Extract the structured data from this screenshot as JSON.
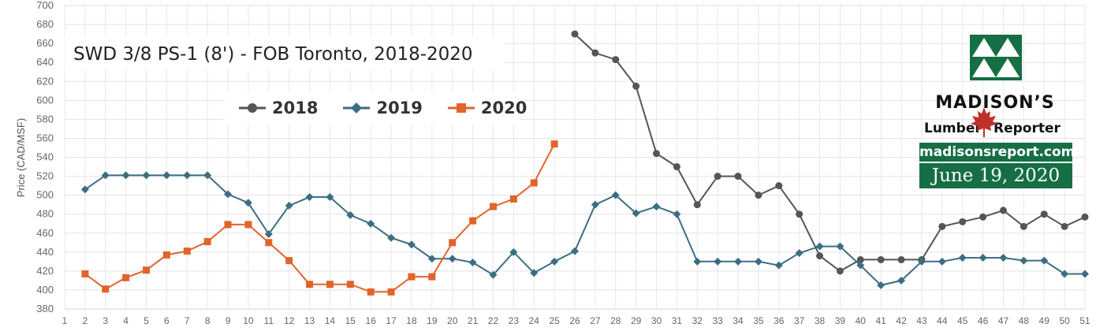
{
  "chart_data": {
    "type": "line",
    "title": "SWD 3/8 PS-1 (8') - FOB Toronto, 2018-2020",
    "ylabel": "Price (CAD/MSF)",
    "xlabel": "",
    "ylim": [
      380,
      700
    ],
    "yticks": [
      380,
      400,
      420,
      440,
      460,
      480,
      500,
      520,
      540,
      560,
      580,
      600,
      620,
      640,
      660,
      680,
      700
    ],
    "x": [
      1,
      2,
      3,
      4,
      5,
      6,
      7,
      8,
      9,
      10,
      11,
      12,
      13,
      14,
      15,
      16,
      17,
      18,
      19,
      20,
      21,
      22,
      23,
      24,
      25,
      26,
      27,
      28,
      29,
      30,
      31,
      32,
      33,
      34,
      35,
      36,
      37,
      38,
      39,
      40,
      41,
      42,
      43,
      44,
      45,
      46,
      47,
      48,
      49,
      50,
      51
    ],
    "grid": true,
    "legend_position": "top-left",
    "series": [
      {
        "name": "2018",
        "color": "#555555",
        "marker": "circle",
        "points": [
          [
            26,
            670
          ],
          [
            27,
            650
          ],
          [
            28,
            643
          ],
          [
            29,
            615
          ],
          [
            30,
            544
          ],
          [
            31,
            530
          ],
          [
            32,
            490
          ],
          [
            33,
            520
          ],
          [
            34,
            520
          ],
          [
            35,
            500
          ],
          [
            36,
            510
          ],
          [
            37,
            480
          ],
          [
            38,
            436
          ],
          [
            39,
            420
          ],
          [
            40,
            432
          ],
          [
            41,
            432
          ],
          [
            42,
            432
          ],
          [
            43,
            432
          ],
          [
            44,
            467
          ],
          [
            45,
            472
          ],
          [
            46,
            477
          ],
          [
            47,
            484
          ],
          [
            48,
            467
          ],
          [
            49,
            480
          ],
          [
            50,
            467
          ],
          [
            51,
            477
          ]
        ]
      },
      {
        "name": "2019",
        "color": "#3c6e82",
        "marker": "diamond",
        "points": [
          [
            2,
            506
          ],
          [
            3,
            521
          ],
          [
            4,
            521
          ],
          [
            5,
            521
          ],
          [
            6,
            521
          ],
          [
            7,
            521
          ],
          [
            8,
            521
          ],
          [
            9,
            501
          ],
          [
            10,
            492
          ],
          [
            11,
            459
          ],
          [
            12,
            489
          ],
          [
            13,
            498
          ],
          [
            14,
            498
          ],
          [
            15,
            479
          ],
          [
            16,
            470
          ],
          [
            17,
            455
          ],
          [
            18,
            448
          ],
          [
            19,
            433
          ],
          [
            20,
            433
          ],
          [
            21,
            429
          ],
          [
            22,
            416
          ],
          [
            23,
            440
          ],
          [
            24,
            418
          ],
          [
            25,
            430
          ],
          [
            26,
            441
          ],
          [
            27,
            490
          ],
          [
            28,
            500
          ],
          [
            29,
            481
          ],
          [
            30,
            488
          ],
          [
            31,
            480
          ],
          [
            32,
            430
          ],
          [
            33,
            430
          ],
          [
            34,
            430
          ],
          [
            35,
            430
          ],
          [
            36,
            426
          ],
          [
            37,
            439
          ],
          [
            38,
            446
          ],
          [
            39,
            446
          ],
          [
            40,
            426
          ],
          [
            41,
            405
          ],
          [
            42,
            410
          ],
          [
            43,
            430
          ],
          [
            44,
            430
          ],
          [
            45,
            434
          ],
          [
            46,
            434
          ],
          [
            47,
            434
          ],
          [
            48,
            431
          ],
          [
            49,
            431
          ],
          [
            50,
            417
          ],
          [
            51,
            417
          ]
        ]
      },
      {
        "name": "2020",
        "color": "#e0642b",
        "marker": "square",
        "points": [
          [
            2,
            417
          ],
          [
            3,
            401
          ],
          [
            4,
            413
          ],
          [
            5,
            421
          ],
          [
            6,
            437
          ],
          [
            7,
            441
          ],
          [
            8,
            451
          ],
          [
            9,
            469
          ],
          [
            10,
            469
          ],
          [
            11,
            450
          ],
          [
            12,
            431
          ],
          [
            13,
            406
          ],
          [
            14,
            406
          ],
          [
            15,
            406
          ],
          [
            16,
            398
          ],
          [
            17,
            398
          ],
          [
            18,
            414
          ],
          [
            19,
            414
          ],
          [
            20,
            450
          ],
          [
            21,
            473
          ],
          [
            22,
            488
          ],
          [
            23,
            496
          ],
          [
            24,
            513
          ],
          [
            25,
            554
          ]
        ]
      }
    ]
  },
  "logo": {
    "name": "MADISON’S",
    "sub_left": "Lumber",
    "sub_right": "Reporter",
    "url": "madisonsreport.com",
    "date": "June 19, 2020",
    "color": "#166e45",
    "leaf_color": "#c0302a"
  }
}
